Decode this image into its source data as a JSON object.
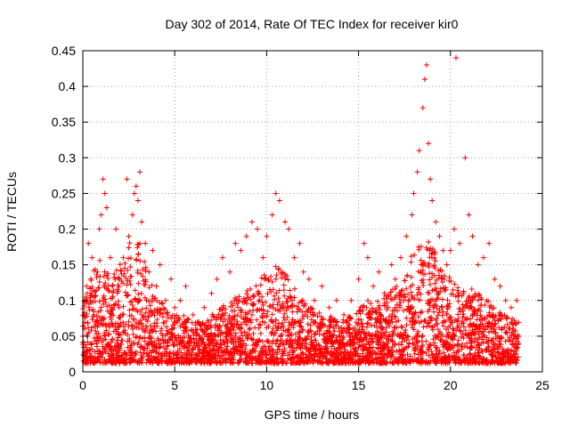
{
  "chart_data": {
    "type": "scatter",
    "title": "Day 302 of 2014, Rate Of TEC Index for receiver kir0",
    "xlabel": "GPS time / hours",
    "ylabel": "ROTI / TECUs",
    "xlim": [
      0,
      25
    ],
    "ylim": [
      0,
      0.45
    ],
    "xticks": [
      0,
      5,
      10,
      15,
      20,
      25
    ],
    "yticks": [
      0,
      0.05,
      0.1,
      0.15,
      0.2,
      0.25,
      0.3,
      0.35,
      0.4,
      0.45
    ],
    "ytick_labels": [
      "0",
      "0.05",
      "0.1",
      "0.15",
      "0.2",
      "0.25",
      "0.3",
      "0.35",
      "0.4",
      "0.45"
    ],
    "grid": true,
    "marker": "plus",
    "color": "#ff0000",
    "series": [
      {
        "name": "",
        "points": [
          [
            0.1,
            0.06
          ],
          [
            0.2,
            0.12
          ],
          [
            0.3,
            0.18
          ],
          [
            0.4,
            0.1
          ],
          [
            0.5,
            0.16
          ],
          [
            0.6,
            0.08
          ],
          [
            0.8,
            0.14
          ],
          [
            0.9,
            0.2
          ],
          [
            1.0,
            0.22
          ],
          [
            1.1,
            0.27
          ],
          [
            1.2,
            0.25
          ],
          [
            1.3,
            0.23
          ],
          [
            1.5,
            0.16
          ],
          [
            1.6,
            0.12
          ],
          [
            1.8,
            0.2
          ],
          [
            2.0,
            0.13
          ],
          [
            2.2,
            0.16
          ],
          [
            2.4,
            0.27
          ],
          [
            2.5,
            0.19
          ],
          [
            2.7,
            0.22
          ],
          [
            2.8,
            0.25
          ],
          [
            2.9,
            0.26
          ],
          [
            3.0,
            0.24
          ],
          [
            3.1,
            0.28
          ],
          [
            3.2,
            0.21
          ],
          [
            3.4,
            0.18
          ],
          [
            3.6,
            0.14
          ],
          [
            3.8,
            0.17
          ],
          [
            4.0,
            0.12
          ],
          [
            4.2,
            0.15
          ],
          [
            4.5,
            0.1
          ],
          [
            4.8,
            0.13
          ],
          [
            5.0,
            0.09
          ],
          [
            5.3,
            0.1
          ],
          [
            5.6,
            0.12
          ],
          [
            6.0,
            0.08
          ],
          [
            6.3,
            0.07
          ],
          [
            6.6,
            0.09
          ],
          [
            7.0,
            0.11
          ],
          [
            7.3,
            0.13
          ],
          [
            7.6,
            0.16
          ],
          [
            8.0,
            0.14
          ],
          [
            8.3,
            0.18
          ],
          [
            8.6,
            0.17
          ],
          [
            8.9,
            0.19
          ],
          [
            9.2,
            0.21
          ],
          [
            9.5,
            0.2
          ],
          [
            9.8,
            0.16
          ],
          [
            10.0,
            0.19
          ],
          [
            10.3,
            0.22
          ],
          [
            10.5,
            0.25
          ],
          [
            10.7,
            0.24
          ],
          [
            11.0,
            0.21
          ],
          [
            11.2,
            0.2
          ],
          [
            11.5,
            0.16
          ],
          [
            11.8,
            0.18
          ],
          [
            12.0,
            0.14
          ],
          [
            12.3,
            0.13
          ],
          [
            12.6,
            0.1
          ],
          [
            13.0,
            0.12
          ],
          [
            13.4,
            0.09
          ],
          [
            13.8,
            0.1
          ],
          [
            14.2,
            0.08
          ],
          [
            14.6,
            0.1
          ],
          [
            15.0,
            0.13
          ],
          [
            15.3,
            0.18
          ],
          [
            15.5,
            0.16
          ],
          [
            15.8,
            0.12
          ],
          [
            16.1,
            0.14
          ],
          [
            16.4,
            0.11
          ],
          [
            16.8,
            0.15
          ],
          [
            17.0,
            0.13
          ],
          [
            17.3,
            0.16
          ],
          [
            17.6,
            0.19
          ],
          [
            17.9,
            0.22
          ],
          [
            18.0,
            0.25
          ],
          [
            18.2,
            0.28
          ],
          [
            18.3,
            0.31
          ],
          [
            18.5,
            0.37
          ],
          [
            18.6,
            0.41
          ],
          [
            18.7,
            0.43
          ],
          [
            18.8,
            0.32
          ],
          [
            18.9,
            0.27
          ],
          [
            19.0,
            0.24
          ],
          [
            19.2,
            0.21
          ],
          [
            19.4,
            0.19
          ],
          [
            19.6,
            0.17
          ],
          [
            19.8,
            0.15
          ],
          [
            20.0,
            0.17
          ],
          [
            20.2,
            0.2
          ],
          [
            20.3,
            0.44
          ],
          [
            20.5,
            0.18
          ],
          [
            20.8,
            0.3
          ],
          [
            21.0,
            0.22
          ],
          [
            21.2,
            0.19
          ],
          [
            21.5,
            0.15
          ],
          [
            21.8,
            0.16
          ],
          [
            22.1,
            0.18
          ],
          [
            22.4,
            0.13
          ],
          [
            22.7,
            0.12
          ],
          [
            23.0,
            0.1
          ],
          [
            23.3,
            0.09
          ],
          [
            23.6,
            0.1
          ]
        ]
      }
    ],
    "band": [
      [
        0,
        0.1
      ],
      [
        0.5,
        0.14
      ],
      [
        1,
        0.16
      ],
      [
        1.5,
        0.13
      ],
      [
        2,
        0.15
      ],
      [
        2.5,
        0.18
      ],
      [
        3,
        0.19
      ],
      [
        3.5,
        0.14
      ],
      [
        4,
        0.11
      ],
      [
        4.5,
        0.09
      ],
      [
        5,
        0.08
      ],
      [
        5.5,
        0.08
      ],
      [
        6,
        0.07
      ],
      [
        6.5,
        0.07
      ],
      [
        7,
        0.08
      ],
      [
        7.5,
        0.09
      ],
      [
        8,
        0.1
      ],
      [
        8.5,
        0.11
      ],
      [
        9,
        0.12
      ],
      [
        9.5,
        0.13
      ],
      [
        10,
        0.14
      ],
      [
        10.5,
        0.15
      ],
      [
        11,
        0.14
      ],
      [
        11.5,
        0.12
      ],
      [
        12,
        0.1
      ],
      [
        12.5,
        0.09
      ],
      [
        13,
        0.08
      ],
      [
        13.5,
        0.08
      ],
      [
        14,
        0.07
      ],
      [
        14.5,
        0.08
      ],
      [
        15,
        0.09
      ],
      [
        15.5,
        0.1
      ],
      [
        16,
        0.1
      ],
      [
        16.5,
        0.11
      ],
      [
        17,
        0.12
      ],
      [
        17.5,
        0.14
      ],
      [
        18,
        0.17
      ],
      [
        18.5,
        0.2
      ],
      [
        19,
        0.18
      ],
      [
        19.5,
        0.15
      ],
      [
        20,
        0.13
      ],
      [
        20.5,
        0.12
      ],
      [
        21,
        0.12
      ],
      [
        21.5,
        0.11
      ],
      [
        22,
        0.1
      ],
      [
        22.5,
        0.09
      ],
      [
        23,
        0.08
      ],
      [
        23.7,
        0.07
      ]
    ]
  }
}
